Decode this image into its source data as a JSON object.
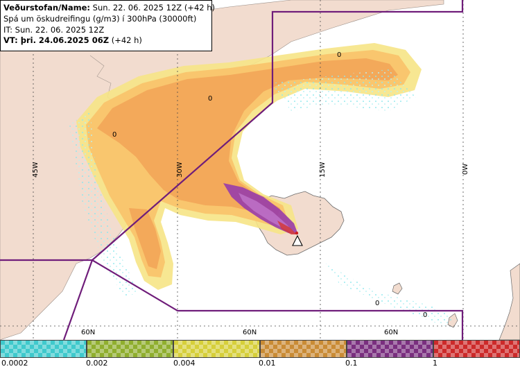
{
  "header": {
    "line1_label": "Veðurstofan/Name:",
    "line1_value": "Sun. 22. 06. 2025 12Z (+42 h)",
    "line2": "Spá um öskudreifingu (g/m3) í 300hPa (30000ft)",
    "line3": "IT: Sun. 22. 06. 2025 12Z",
    "line4_label": "VT: þri. 24.06.2025 06Z",
    "line4_value": "(+42 h)"
  },
  "map": {
    "meridian_labels": [
      "45W",
      "30W",
      "15W",
      "0W"
    ],
    "parallel_labels": [
      "60N",
      "60N",
      "60N"
    ],
    "contour_labels": [
      "0",
      "0",
      "0",
      "0",
      "0"
    ],
    "colors": {
      "land": "#f2dccf",
      "sea": "#ffffff",
      "light_ash": "#f6e486",
      "medium_ash": "#f9c66e",
      "heavy_ash": "#f3a95a",
      "purple_ash": "#9a3fa8",
      "cyan_specks": "#8ee8ee",
      "sector_line": "#6f1d7a"
    }
  },
  "legend": {
    "ticks": [
      "0.0002",
      "0.002",
      "0.004",
      "0.01",
      "0.1",
      "1"
    ],
    "colors": [
      "#3fc9cc",
      "#8fae2e",
      "#d6cf3a",
      "#c98b35",
      "#7a2f7f",
      "#cc2a2a"
    ],
    "icons": [
      "checker-cyan-icon",
      "checker-green-icon",
      "checker-yellow-icon",
      "checker-orange-icon",
      "checker-purple-icon",
      "checker-red-icon"
    ]
  }
}
